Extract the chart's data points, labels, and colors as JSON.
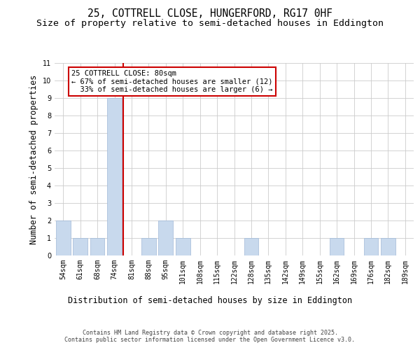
{
  "title_line1": "25, COTTRELL CLOSE, HUNGERFORD, RG17 0HF",
  "title_line2": "Size of property relative to semi-detached houses in Eddington",
  "xlabel": "Distribution of semi-detached houses by size in Eddington",
  "ylabel": "Number of semi-detached properties",
  "categories": [
    "54sqm",
    "61sqm",
    "68sqm",
    "74sqm",
    "81sqm",
    "88sqm",
    "95sqm",
    "101sqm",
    "108sqm",
    "115sqm",
    "122sqm",
    "128sqm",
    "135sqm",
    "142sqm",
    "149sqm",
    "155sqm",
    "162sqm",
    "169sqm",
    "176sqm",
    "182sqm",
    "189sqm"
  ],
  "values": [
    2,
    1,
    1,
    9,
    0,
    1,
    2,
    1,
    0,
    0,
    0,
    1,
    0,
    0,
    0,
    0,
    1,
    0,
    1,
    1,
    0
  ],
  "bar_color": "#c8d9ed",
  "bar_edge_color": "#a0b8d8",
  "highlight_index": 3,
  "red_line_color": "#cc0000",
  "annotation_text": "25 COTTRELL CLOSE: 80sqm\n← 67% of semi-detached houses are smaller (12)\n  33% of semi-detached houses are larger (6) →",
  "annotation_box_color": "#ffffff",
  "annotation_box_edge": "#cc0000",
  "ylim": [
    0,
    11
  ],
  "yticks": [
    0,
    1,
    2,
    3,
    4,
    5,
    6,
    7,
    8,
    9,
    10,
    11
  ],
  "grid_color": "#cccccc",
  "background_color": "#ffffff",
  "footer_text": "Contains HM Land Registry data © Crown copyright and database right 2025.\nContains public sector information licensed under the Open Government Licence v3.0.",
  "title_fontsize": 10.5,
  "subtitle_fontsize": 9.5,
  "axis_label_fontsize": 8.5,
  "tick_fontsize": 7,
  "annotation_fontsize": 7.5,
  "footer_fontsize": 6
}
